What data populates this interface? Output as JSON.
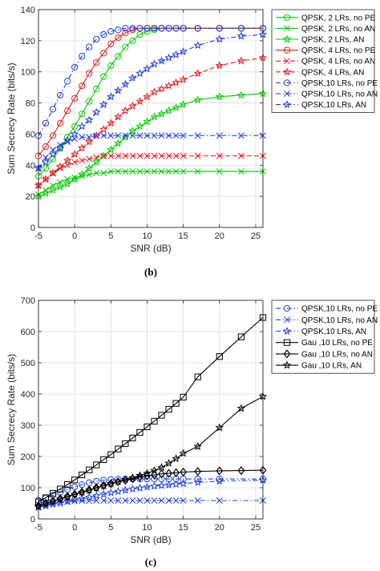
{
  "chart_data": [
    {
      "type": "line",
      "xlabel": "SNR (dB)",
      "ylabel": "Sum Secrecy Rate (bits/s)",
      "xlim": [
        -5,
        26
      ],
      "ylim": [
        0,
        140
      ],
      "xticks": [
        -5,
        0,
        5,
        10,
        15,
        20,
        25
      ],
      "yticks": [
        0,
        20,
        40,
        60,
        80,
        100,
        120,
        140
      ],
      "grid": true,
      "legend_position": "top-right",
      "caption": "(b)",
      "series": [
        {
          "name": "QPSK,  2 LRs, no PE",
          "color": "#00cc00",
          "dash": "solid",
          "marker": "circle",
          "x": [
            -5,
            -4,
            -3,
            -2,
            -1,
            0,
            1,
            2,
            3,
            4,
            5,
            6,
            7,
            8,
            9,
            10,
            11,
            12,
            13,
            14,
            15,
            17,
            20,
            23,
            26
          ],
          "y": [
            33,
            38,
            44,
            51,
            58,
            65,
            73,
            81,
            89,
            97,
            104,
            110,
            116,
            120,
            124,
            126,
            127,
            128,
            128,
            128,
            128,
            128,
            128,
            128,
            128
          ]
        },
        {
          "name": "QPSK,  2 LRs, no AN",
          "color": "#00cc00",
          "dash": "solid",
          "marker": "x",
          "x": [
            -5,
            -4,
            -3,
            -2,
            -1,
            0,
            1,
            2,
            3,
            4,
            5,
            6,
            7,
            8,
            9,
            10,
            11,
            12,
            13,
            14,
            15,
            17,
            20,
            23,
            26
          ],
          "y": [
            21,
            24,
            27,
            29,
            31,
            32,
            33,
            34,
            35,
            35,
            36,
            36,
            36,
            36,
            36,
            36,
            36,
            36,
            36,
            36,
            36,
            36,
            36,
            36,
            36
          ]
        },
        {
          "name": "QPSK,  2 LRs, AN",
          "color": "#00cc00",
          "dash": "solid",
          "marker": "star",
          "x": [
            -5,
            -4,
            -3,
            -2,
            -1,
            0,
            1,
            2,
            3,
            4,
            5,
            6,
            7,
            8,
            9,
            10,
            11,
            12,
            13,
            14,
            15,
            17,
            20,
            23,
            26
          ],
          "y": [
            20,
            22,
            24,
            26,
            28,
            31,
            34,
            38,
            42,
            46,
            50,
            54,
            58,
            62,
            65,
            68,
            71,
            73,
            75,
            77,
            79,
            82,
            84,
            85,
            86
          ]
        },
        {
          "name": "QPSK,  4 LRs, no PE",
          "color": "#e41a1c",
          "dash": "solid",
          "marker": "circle",
          "x": [
            -5,
            -4,
            -3,
            -2,
            -1,
            0,
            1,
            2,
            3,
            4,
            5,
            6,
            7,
            8,
            9,
            10,
            11,
            12,
            13,
            14,
            15,
            17,
            20,
            23,
            26
          ],
          "y": [
            46,
            52,
            59,
            67,
            75,
            83,
            91,
            99,
            106,
            112,
            118,
            122,
            125,
            127,
            128,
            128,
            128,
            128,
            128,
            128,
            128,
            128,
            128,
            128,
            128
          ]
        },
        {
          "name": "QPSK,  4 LRs, no AN",
          "color": "#e41a1c",
          "dash": "dashed",
          "marker": "x",
          "x": [
            -5,
            -4,
            -3,
            -2,
            -1,
            0,
            1,
            2,
            3,
            4,
            5,
            6,
            7,
            8,
            9,
            10,
            11,
            12,
            13,
            14,
            15,
            17,
            20,
            23,
            26
          ],
          "y": [
            27,
            31,
            35,
            38,
            40,
            42,
            43,
            44,
            45,
            46,
            46,
            46,
            46,
            46,
            46,
            46,
            46,
            46,
            46,
            46,
            46,
            46,
            46,
            46,
            46
          ]
        },
        {
          "name": "QPSK,  4 LRs, AN",
          "color": "#e41a1c",
          "dash": "dashed",
          "marker": "star",
          "x": [
            -5,
            -4,
            -3,
            -2,
            -1,
            0,
            1,
            2,
            3,
            4,
            5,
            6,
            7,
            8,
            9,
            10,
            11,
            12,
            13,
            14,
            15,
            17,
            20,
            23,
            26
          ],
          "y": [
            27,
            31,
            35,
            39,
            43,
            47,
            51,
            55,
            59,
            63,
            67,
            71,
            75,
            78,
            81,
            84,
            87,
            89,
            91,
            93,
            95,
            99,
            104,
            107,
            109
          ]
        },
        {
          "name": "QPSK,10 LRs, no PE",
          "color": "#1f3fe0",
          "dash": "dashdot",
          "marker": "circle",
          "x": [
            -5,
            -4,
            -3,
            -2,
            -1,
            0,
            1,
            2,
            3,
            4,
            5,
            6,
            7,
            8,
            9,
            10,
            11,
            12,
            13,
            14,
            15,
            17,
            20,
            23,
            26
          ],
          "y": [
            59,
            67,
            76,
            85,
            94,
            103,
            110,
            116,
            121,
            124,
            126,
            127,
            128,
            128,
            128,
            128,
            128,
            128,
            128,
            128,
            128,
            128,
            128,
            128,
            128
          ]
        },
        {
          "name": "QPSK,10 LRs, no AN",
          "color": "#1f3fe0",
          "dash": "dashdot",
          "marker": "x",
          "x": [
            -5,
            -4,
            -3,
            -2,
            -1,
            0,
            1,
            2,
            3,
            4,
            5,
            6,
            7,
            8,
            9,
            10,
            11,
            12,
            13,
            14,
            15,
            17,
            20,
            23,
            26
          ],
          "y": [
            38,
            45,
            50,
            53,
            55,
            57,
            58,
            58,
            59,
            59,
            59,
            59,
            59,
            59,
            59,
            59,
            59,
            59,
            59,
            59,
            59,
            59,
            59,
            59,
            59
          ]
        },
        {
          "name": "QPSK,10 LRs, AN",
          "color": "#1f3fe0",
          "dash": "dashdot",
          "marker": "star",
          "x": [
            -5,
            -4,
            -3,
            -2,
            -1,
            0,
            1,
            2,
            3,
            4,
            5,
            6,
            7,
            8,
            9,
            10,
            11,
            12,
            13,
            14,
            15,
            17,
            20,
            23,
            26
          ],
          "y": [
            38,
            42,
            47,
            51,
            56,
            60,
            65,
            69,
            74,
            79,
            84,
            88,
            92,
            96,
            99,
            102,
            105,
            107,
            109,
            111,
            113,
            117,
            121,
            123,
            124
          ]
        }
      ]
    },
    {
      "type": "line",
      "xlabel": "SNR (dB)",
      "ylabel": "Sum Secrecy Rate (bits/s)",
      "xlim": [
        -5,
        26
      ],
      "ylim": [
        0,
        700
      ],
      "xticks": [
        -5,
        0,
        5,
        10,
        15,
        20,
        25
      ],
      "yticks": [
        0,
        100,
        200,
        300,
        400,
        500,
        600,
        700
      ],
      "grid": true,
      "legend_position": "top-left",
      "caption": "(c)",
      "series": [
        {
          "name": "QPSK,10 LRs, no PE",
          "color": "#1f3fe0",
          "dash": "dashdot",
          "marker": "circle",
          "x": [
            -5,
            -4,
            -3,
            -2,
            -1,
            0,
            1,
            2,
            3,
            4,
            5,
            6,
            7,
            8,
            9,
            10,
            11,
            12,
            13,
            14,
            15,
            17,
            20,
            26
          ],
          "y": [
            59,
            67,
            76,
            85,
            94,
            103,
            110,
            116,
            121,
            124,
            126,
            127,
            128,
            128,
            128,
            128,
            128,
            128,
            128,
            128,
            128,
            128,
            128,
            128
          ]
        },
        {
          "name": "QPSK,10 LRs, no AN",
          "color": "#1f3fe0",
          "dash": "dashdot",
          "marker": "x",
          "x": [
            -5,
            -4,
            -3,
            -2,
            -1,
            0,
            1,
            2,
            3,
            4,
            5,
            6,
            7,
            8,
            9,
            10,
            11,
            12,
            13,
            14,
            15,
            17,
            20,
            26
          ],
          "y": [
            38,
            45,
            50,
            53,
            55,
            57,
            58,
            58,
            59,
            59,
            59,
            59,
            59,
            59,
            59,
            59,
            59,
            59,
            59,
            59,
            59,
            59,
            59,
            59
          ]
        },
        {
          "name": "QPSK,10 LRs, AN",
          "color": "#1f3fe0",
          "dash": "dashdot",
          "marker": "star",
          "x": [
            -5,
            -4,
            -3,
            -2,
            -1,
            0,
            1,
            2,
            3,
            4,
            5,
            6,
            7,
            8,
            9,
            10,
            11,
            12,
            13,
            14,
            15,
            17,
            20,
            26
          ],
          "y": [
            38,
            42,
            47,
            51,
            56,
            60,
            65,
            69,
            74,
            79,
            84,
            88,
            92,
            96,
            99,
            102,
            105,
            107,
            109,
            111,
            113,
            117,
            121,
            124
          ]
        },
        {
          "name": "Gau    ,10 LRs, no PE",
          "color": "#000000",
          "dash": "solid",
          "marker": "square",
          "x": [
            -5,
            -4,
            -3,
            -2,
            -1,
            0,
            1,
            2,
            3,
            4,
            5,
            6,
            7,
            8,
            9,
            10,
            11,
            12,
            13,
            14,
            15,
            17,
            20,
            23,
            26
          ],
          "y": [
            55,
            68,
            82,
            96,
            110,
            125,
            141,
            157,
            173,
            190,
            206,
            224,
            241,
            259,
            277,
            295,
            313,
            332,
            351,
            370,
            390,
            455,
            520,
            583,
            645
          ]
        },
        {
          "name": "Gau    ,10 LRs, no AN",
          "color": "#000000",
          "dash": "solid",
          "marker": "diamond",
          "x": [
            -5,
            -4,
            -3,
            -2,
            -1,
            0,
            1,
            2,
            3,
            4,
            5,
            6,
            7,
            8,
            9,
            10,
            11,
            12,
            13,
            14,
            15,
            17,
            20,
            23,
            26
          ],
          "y": [
            42,
            50,
            57,
            65,
            72,
            79,
            86,
            93,
            100,
            107,
            113,
            119,
            124,
            129,
            134,
            138,
            141,
            144,
            146,
            148,
            150,
            152,
            154,
            155,
            156
          ]
        },
        {
          "name": "Gau    ,10 LRs, AN",
          "color": "#000000",
          "dash": "solid",
          "marker": "star",
          "x": [
            -5,
            -4,
            -3,
            -2,
            -1,
            0,
            1,
            2,
            3,
            4,
            5,
            6,
            7,
            8,
            9,
            10,
            11,
            12,
            13,
            14,
            15,
            17,
            20,
            23,
            26
          ],
          "y": [
            42,
            50,
            57,
            64,
            71,
            78,
            85,
            92,
            99,
            106,
            113,
            119,
            126,
            132,
            139,
            146,
            155,
            165,
            178,
            193,
            210,
            232,
            292,
            354,
            392
          ]
        }
      ]
    }
  ]
}
